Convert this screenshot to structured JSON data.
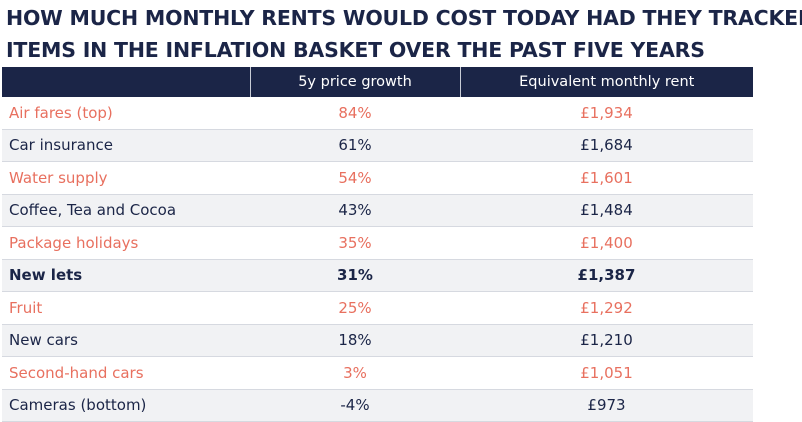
{
  "title": {
    "line1": "HOW MUCH MONTHLY RENTS WOULD COST TODAY HAD THEY TRACKED",
    "line2": "ITEMS IN THE INFLATION BASKET OVER THE PAST FIVE YEARS"
  },
  "table": {
    "headers": [
      "",
      "5y price growth",
      "Equivalent monthly rent"
    ],
    "rows": [
      {
        "name": "Air fares (top)",
        "growth": "84%",
        "rent": "£1,934",
        "color": "#e8705f",
        "bold": false
      },
      {
        "name": "Car insurance",
        "growth": "61%",
        "rent": "£1,684",
        "color": "#1b2547",
        "bold": false
      },
      {
        "name": "Water supply",
        "growth": "54%",
        "rent": "£1,601",
        "color": "#e8705f",
        "bold": false
      },
      {
        "name": "Coffee, Tea and Cocoa",
        "growth": "43%",
        "rent": "£1,484",
        "color": "#1b2547",
        "bold": false
      },
      {
        "name": "Package holidays",
        "growth": "35%",
        "rent": "£1,400",
        "color": "#e8705f",
        "bold": false
      },
      {
        "name": "New lets",
        "growth": "31%",
        "rent": "£1,387",
        "color": "#1b2547",
        "bold": true
      },
      {
        "name": "Fruit",
        "growth": "25%",
        "rent": "£1,292",
        "color": "#e8705f",
        "bold": false
      },
      {
        "name": "New cars",
        "growth": "18%",
        "rent": "£1,210",
        "color": "#1b2547",
        "bold": false
      },
      {
        "name": "Second-hand cars",
        "growth": "3%",
        "rent": "£1,051",
        "color": "#e8705f",
        "bold": false
      },
      {
        "name": "Cameras (bottom)",
        "growth": "-4%",
        "rent": "£973",
        "color": "#1b2547",
        "bold": false
      }
    ]
  },
  "colors": {
    "header_bg": "#1b2547",
    "highlight_text": "#e8705f",
    "normal_text": "#1b2547",
    "alt_row_bg": "#f1f2f4"
  }
}
